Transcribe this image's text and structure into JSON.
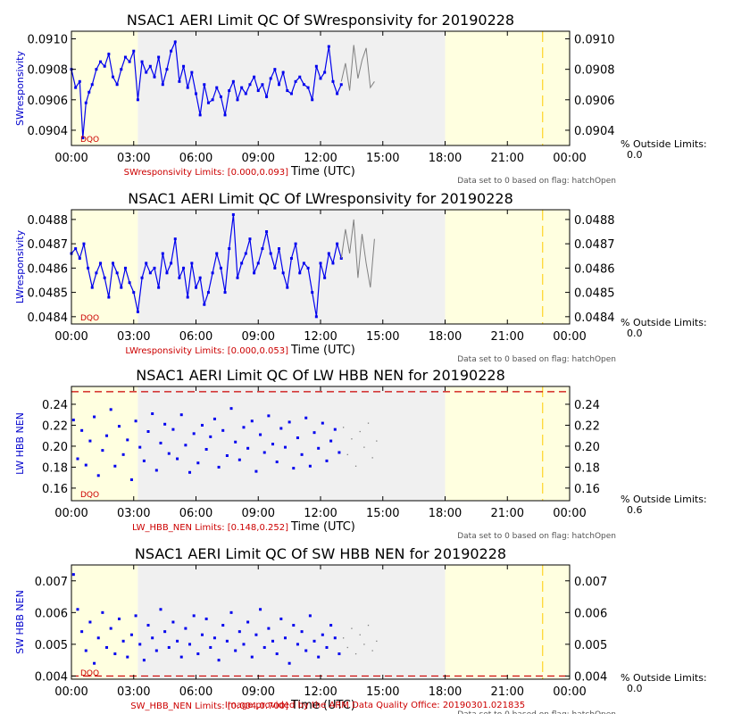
{
  "footer": {
    "credit": "Image provided by the ARM Data Quality Office: 20190301.021835"
  },
  "chart_data": [
    {
      "type": "scatter",
      "title": "NSAC1 AERI Limit QC Of SWresponsivity for 20190228",
      "xlabel": "Time (UTC)",
      "ylabel": "SWresponsivity",
      "xlim": [
        0,
        24
      ],
      "ylim": [
        0.0903,
        0.09105
      ],
      "xticks": [
        "00:00",
        "03:00",
        "06:00",
        "09:00",
        "12:00",
        "15:00",
        "18:00",
        "21:00",
        "00:00"
      ],
      "yticks": [
        "0.0904",
        "0.0906",
        "0.0908",
        "0.0910"
      ],
      "limits_label": "SWresponsivity Limits: [0.000,0.093]",
      "pct_outside_label": "% Outside Limits:",
      "pct_outside_value": "0.0",
      "dqo_label": "DQO",
      "flag_note": "Data set to 0 based on flag: hatchOpen",
      "limit_lines": [],
      "shaded_regions": [
        {
          "from": 0,
          "to": 3.2,
          "color": "#ffffe0"
        },
        {
          "from": 3.2,
          "to": 18.0,
          "color": "#f0f0f0"
        },
        {
          "from": 18.0,
          "to": 24,
          "color": "#ffffe0"
        }
      ],
      "vline": 22.7,
      "series_color": "#0000ee",
      "flag_color": "#808080",
      "series": [
        {
          "style": "dots",
          "x": [
            0.0,
            0.2,
            0.4,
            0.55,
            0.7,
            0.85,
            1.0,
            1.2,
            1.4,
            1.6,
            1.8,
            2.0,
            2.2,
            2.4,
            2.6,
            2.8,
            3.0,
            3.2,
            3.4,
            3.6,
            3.8,
            4.0,
            4.2,
            4.4,
            4.6,
            4.8,
            5.0,
            5.2,
            5.4,
            5.6,
            5.8,
            6.0,
            6.2,
            6.4,
            6.6,
            6.8,
            7.0,
            7.2,
            7.4,
            7.6,
            7.8,
            8.0,
            8.2,
            8.4,
            8.6,
            8.8,
            9.0,
            9.2,
            9.4,
            9.6,
            9.8,
            10.0,
            10.2,
            10.4,
            10.6,
            10.8,
            11.0,
            11.2,
            11.4,
            11.6,
            11.8,
            12.0,
            12.2,
            12.4,
            12.6,
            12.8,
            13.0
          ],
          "y": [
            0.0908,
            0.09068,
            0.09072,
            0.09035,
            0.09058,
            0.09065,
            0.0907,
            0.0908,
            0.09085,
            0.09082,
            0.0909,
            0.09075,
            0.0907,
            0.0908,
            0.09088,
            0.09085,
            0.09092,
            0.0906,
            0.09085,
            0.09078,
            0.09082,
            0.09075,
            0.09088,
            0.0907,
            0.0908,
            0.09092,
            0.09098,
            0.09072,
            0.09082,
            0.09068,
            0.09078,
            0.09064,
            0.0905,
            0.0907,
            0.09058,
            0.0906,
            0.09068,
            0.09062,
            0.0905,
            0.09066,
            0.09072,
            0.0906,
            0.09068,
            0.09064,
            0.0907,
            0.09075,
            0.09066,
            0.0907,
            0.09062,
            0.09074,
            0.0908,
            0.0907,
            0.09078,
            0.09066,
            0.09064,
            0.09072,
            0.09075,
            0.0907,
            0.09068,
            0.0906,
            0.09082,
            0.09074,
            0.09078,
            0.09095,
            0.09072,
            0.09064,
            0.0907
          ]
        },
        {
          "style": "flagged",
          "x": [
            13.0,
            13.2,
            13.4,
            13.6,
            13.8,
            14.0,
            14.2,
            14.4,
            14.6
          ],
          "y": [
            0.09072,
            0.09084,
            0.09066,
            0.09096,
            0.09074,
            0.09086,
            0.09094,
            0.09068,
            0.09072
          ]
        }
      ]
    },
    {
      "type": "scatter",
      "title": "NSAC1 AERI Limit QC Of LWresponsivity for 20190228",
      "xlabel": "Time (UTC)",
      "ylabel": "LWresponsivity",
      "xlim": [
        0,
        24
      ],
      "ylim": [
        0.04837,
        0.04884
      ],
      "xticks": [
        "00:00",
        "03:00",
        "06:00",
        "09:00",
        "12:00",
        "15:00",
        "18:00",
        "21:00",
        "00:00"
      ],
      "yticks": [
        "0.0484",
        "0.0485",
        "0.0486",
        "0.0487",
        "0.0488"
      ],
      "limits_label": "LWresponsivity Limits: [0.000,0.053]",
      "pct_outside_label": "% Outside Limits:",
      "pct_outside_value": "0.0",
      "dqo_label": "DQO",
      "flag_note": "Data set to 0 based on flag: hatchOpen",
      "limit_lines": [],
      "shaded_regions": [
        {
          "from": 0,
          "to": 3.2,
          "color": "#ffffe0"
        },
        {
          "from": 3.2,
          "to": 18.0,
          "color": "#f0f0f0"
        },
        {
          "from": 18.0,
          "to": 24,
          "color": "#ffffe0"
        }
      ],
      "vline": 22.7,
      "series_color": "#0000ee",
      "flag_color": "#808080",
      "series": [
        {
          "style": "dots",
          "x": [
            0.0,
            0.2,
            0.4,
            0.6,
            0.8,
            1.0,
            1.2,
            1.4,
            1.6,
            1.8,
            2.0,
            2.2,
            2.4,
            2.6,
            2.8,
            3.0,
            3.2,
            3.4,
            3.6,
            3.8,
            4.0,
            4.2,
            4.4,
            4.6,
            4.8,
            5.0,
            5.2,
            5.4,
            5.6,
            5.8,
            6.0,
            6.2,
            6.4,
            6.6,
            6.8,
            7.0,
            7.2,
            7.4,
            7.6,
            7.8,
            8.0,
            8.2,
            8.4,
            8.6,
            8.8,
            9.0,
            9.2,
            9.4,
            9.6,
            9.8,
            10.0,
            10.2,
            10.4,
            10.6,
            10.8,
            11.0,
            11.2,
            11.4,
            11.6,
            11.8,
            12.0,
            12.2,
            12.4,
            12.6,
            12.8,
            13.0
          ],
          "y": [
            0.04866,
            0.04868,
            0.04864,
            0.0487,
            0.0486,
            0.04852,
            0.04858,
            0.04862,
            0.04856,
            0.04848,
            0.04862,
            0.04858,
            0.04852,
            0.0486,
            0.04854,
            0.0485,
            0.04842,
            0.04856,
            0.04862,
            0.04858,
            0.0486,
            0.04852,
            0.04866,
            0.04858,
            0.04862,
            0.04872,
            0.04856,
            0.0486,
            0.04848,
            0.04862,
            0.04852,
            0.04856,
            0.04845,
            0.0485,
            0.04858,
            0.04866,
            0.0486,
            0.0485,
            0.04868,
            0.04882,
            0.04856,
            0.04862,
            0.04866,
            0.04872,
            0.04858,
            0.04862,
            0.04868,
            0.04875,
            0.04866,
            0.0486,
            0.04868,
            0.04858,
            0.04852,
            0.04864,
            0.0487,
            0.04858,
            0.04862,
            0.0486,
            0.0485,
            0.0484,
            0.04862,
            0.04856,
            0.04866,
            0.04862,
            0.0487,
            0.04864
          ]
        },
        {
          "style": "flagged",
          "x": [
            13.0,
            13.2,
            13.4,
            13.6,
            13.8,
            14.0,
            14.2,
            14.4,
            14.6
          ],
          "y": [
            0.04864,
            0.04876,
            0.04866,
            0.0488,
            0.04856,
            0.04874,
            0.04862,
            0.04852,
            0.04872
          ]
        }
      ]
    },
    {
      "type": "scatter",
      "title": "NSAC1 AERI Limit QC Of LW HBB NEN for 20190228",
      "xlabel": "Time (UTC)",
      "ylabel": "LW HBB NEN",
      "xlim": [
        0,
        24
      ],
      "ylim": [
        0.148,
        0.257
      ],
      "xticks": [
        "00:00",
        "03:00",
        "06:00",
        "09:00",
        "12:00",
        "15:00",
        "18:00",
        "21:00",
        "00:00"
      ],
      "yticks": [
        "0.16",
        "0.18",
        "0.20",
        "0.22",
        "0.24"
      ],
      "limits_label": "LW_HBB_NEN Limits: [0.148,0.252]",
      "pct_outside_label": "% Outside Limits:",
      "pct_outside_value": "0.6",
      "dqo_label": "DQO",
      "flag_note": "Data set to 0 based on flag: hatchOpen",
      "limit_lines": [
        0.252
      ],
      "shaded_regions": [
        {
          "from": 0,
          "to": 3.2,
          "color": "#ffffe0"
        },
        {
          "from": 3.2,
          "to": 18.0,
          "color": "#f0f0f0"
        },
        {
          "from": 18.0,
          "to": 24,
          "color": "#ffffe0"
        }
      ],
      "vline": 22.7,
      "series_color": "#0000ee",
      "flag_color": "#808080",
      "series": [
        {
          "style": "points",
          "x": [
            0.1,
            0.3,
            0.5,
            0.7,
            0.9,
            1.1,
            1.3,
            1.5,
            1.7,
            1.9,
            2.1,
            2.3,
            2.5,
            2.7,
            2.9,
            3.1,
            3.3,
            3.5,
            3.7,
            3.9,
            4.1,
            4.3,
            4.5,
            4.7,
            4.9,
            5.1,
            5.3,
            5.5,
            5.7,
            5.9,
            6.1,
            6.3,
            6.5,
            6.7,
            6.9,
            7.1,
            7.3,
            7.5,
            7.7,
            7.9,
            8.1,
            8.3,
            8.5,
            8.7,
            8.9,
            9.1,
            9.3,
            9.5,
            9.7,
            9.9,
            10.1,
            10.3,
            10.5,
            10.7,
            10.9,
            11.1,
            11.3,
            11.5,
            11.7,
            11.9,
            12.1,
            12.3,
            12.5,
            12.7,
            12.9
          ],
          "y": [
            0.225,
            0.188,
            0.215,
            0.182,
            0.205,
            0.228,
            0.172,
            0.196,
            0.21,
            0.235,
            0.181,
            0.219,
            0.192,
            0.206,
            0.168,
            0.224,
            0.199,
            0.186,
            0.214,
            0.231,
            0.177,
            0.203,
            0.221,
            0.193,
            0.216,
            0.188,
            0.23,
            0.201,
            0.175,
            0.212,
            0.184,
            0.22,
            0.197,
            0.209,
            0.226,
            0.18,
            0.215,
            0.191,
            0.236,
            0.204,
            0.187,
            0.218,
            0.198,
            0.224,
            0.176,
            0.211,
            0.194,
            0.229,
            0.202,
            0.185,
            0.217,
            0.199,
            0.223,
            0.179,
            0.208,
            0.192,
            0.227,
            0.181,
            0.213,
            0.198,
            0.222,
            0.186,
            0.205,
            0.216,
            0.194
          ]
        },
        {
          "style": "flagged-points",
          "x": [
            13.1,
            13.3,
            13.5,
            13.7,
            13.9,
            14.1,
            14.3,
            14.5,
            14.7
          ],
          "y": [
            0.218,
            0.192,
            0.207,
            0.181,
            0.214,
            0.199,
            0.222,
            0.189,
            0.205
          ]
        }
      ]
    },
    {
      "type": "scatter",
      "title": "NSAC1 AERI Limit QC Of SW HBB NEN for 20190228",
      "xlabel": "Time (UTC)",
      "ylabel": "SW HBB NEN",
      "xlim": [
        0,
        24
      ],
      "ylim": [
        0.0039,
        0.0075
      ],
      "xticks": [
        "00:00",
        "03:00",
        "06:00",
        "09:00",
        "12:00",
        "15:00",
        "18:00",
        "21:00",
        "00:00"
      ],
      "yticks": [
        "0.004",
        "0.005",
        "0.006",
        "0.007"
      ],
      "limits_label": "SW_HBB_NEN Limits: [0.004,0.700]",
      "pct_outside_label": "% Outside Limits:",
      "pct_outside_value": "0.0",
      "dqo_label": "DQO",
      "flag_note": "Data set to 0 based on flag: hatchOpen",
      "limit_lines": [
        0.004
      ],
      "shaded_regions": [
        {
          "from": 0,
          "to": 3.2,
          "color": "#ffffe0"
        },
        {
          "from": 3.2,
          "to": 18.0,
          "color": "#f0f0f0"
        },
        {
          "from": 18.0,
          "to": 24,
          "color": "#ffffe0"
        }
      ],
      "vline": 22.7,
      "series_color": "#0000ee",
      "flag_color": "#808080",
      "series": [
        {
          "style": "points",
          "x": [
            0.1,
            0.3,
            0.5,
            0.7,
            0.9,
            1.1,
            1.3,
            1.5,
            1.7,
            1.9,
            2.1,
            2.3,
            2.5,
            2.7,
            2.9,
            3.1,
            3.3,
            3.5,
            3.7,
            3.9,
            4.1,
            4.3,
            4.5,
            4.7,
            4.9,
            5.1,
            5.3,
            5.5,
            5.7,
            5.9,
            6.1,
            6.3,
            6.5,
            6.7,
            6.9,
            7.1,
            7.3,
            7.5,
            7.7,
            7.9,
            8.1,
            8.3,
            8.5,
            8.7,
            8.9,
            9.1,
            9.3,
            9.5,
            9.7,
            9.9,
            10.1,
            10.3,
            10.5,
            10.7,
            10.9,
            11.1,
            11.3,
            11.5,
            11.7,
            11.9,
            12.1,
            12.3,
            12.5,
            12.7,
            12.9
          ],
          "y": [
            0.0072,
            0.0061,
            0.0054,
            0.0048,
            0.0057,
            0.0044,
            0.0052,
            0.006,
            0.0049,
            0.0055,
            0.0047,
            0.0058,
            0.0051,
            0.0046,
            0.0053,
            0.0059,
            0.005,
            0.0045,
            0.0056,
            0.0052,
            0.0048,
            0.0061,
            0.0054,
            0.0049,
            0.0057,
            0.0051,
            0.0046,
            0.0055,
            0.005,
            0.0059,
            0.0047,
            0.0053,
            0.0058,
            0.0049,
            0.0052,
            0.0045,
            0.0056,
            0.0051,
            0.006,
            0.0048,
            0.0054,
            0.005,
            0.0057,
            0.0046,
            0.0053,
            0.0061,
            0.0049,
            0.0055,
            0.0051,
            0.0047,
            0.0058,
            0.0052,
            0.0044,
            0.0056,
            0.005,
            0.0054,
            0.0048,
            0.0059,
            0.0051,
            0.0046,
            0.0053,
            0.0049,
            0.0056,
            0.0052,
            0.0047
          ]
        },
        {
          "style": "flagged-points",
          "x": [
            13.1,
            13.3,
            13.5,
            13.7,
            13.9,
            14.1,
            14.3,
            14.5,
            14.7
          ],
          "y": [
            0.0052,
            0.0049,
            0.0055,
            0.0047,
            0.0053,
            0.005,
            0.0056,
            0.0048,
            0.0051
          ]
        }
      ]
    }
  ]
}
